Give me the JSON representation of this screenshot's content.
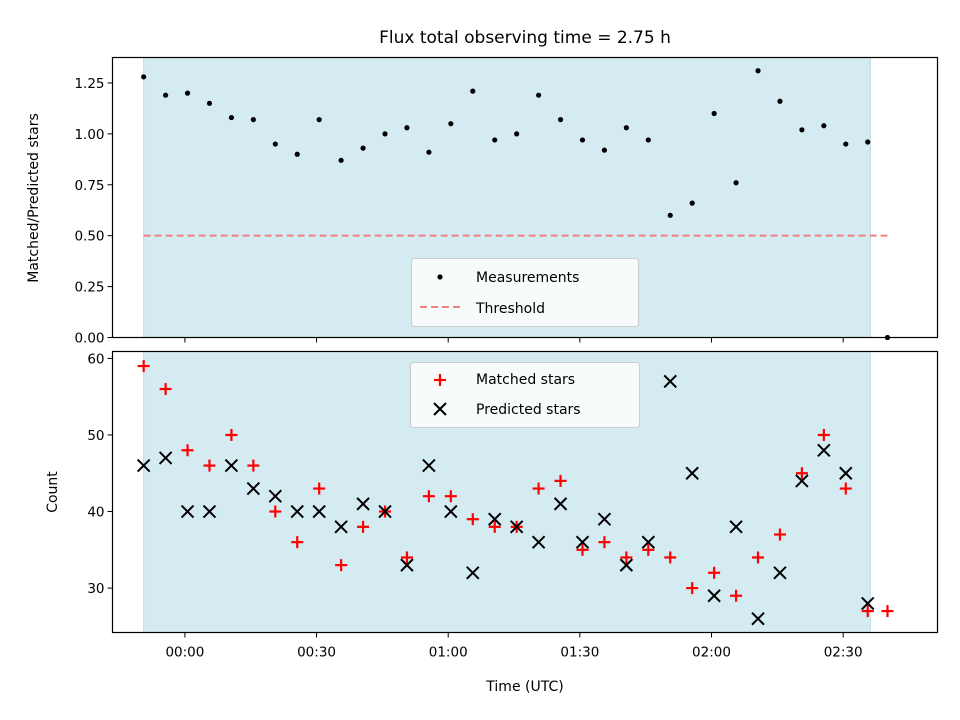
{
  "chart_data": [
    {
      "type": "scatter",
      "title": "Flux total observing time = 2.75 h",
      "xlabel": "",
      "ylabel": "Matched/Predicted stars",
      "ylim": [
        0,
        1.375
      ],
      "yticks": [
        "0.00",
        "0.25",
        "0.50",
        "0.75",
        "1.00",
        "1.25"
      ],
      "ytick_values": [
        0,
        0.25,
        0.5,
        0.75,
        1.0,
        1.25
      ],
      "xlim_minutes": [
        -16.5,
        171.5
      ],
      "shaded_region_minutes": [
        -9.4,
        156.2
      ],
      "legend_position": "lower center",
      "legend": [
        "Measurements",
        "Threshold"
      ],
      "threshold": {
        "name": "Threshold",
        "value": 0.5,
        "x_minutes": [
          -9.4,
          160.1
        ],
        "color": "#f08080"
      },
      "series": [
        {
          "name": "Measurements",
          "color": "#000000",
          "x_minutes": [
            -9.4,
            -4.4,
            0.6,
            5.6,
            10.6,
            15.6,
            20.6,
            25.6,
            30.6,
            35.6,
            40.6,
            45.6,
            50.6,
            55.6,
            60.6,
            65.6,
            70.6,
            75.6,
            80.6,
            85.6,
            90.6,
            95.6,
            100.6,
            105.6,
            110.6,
            115.6,
            120.6,
            125.6,
            130.6,
            135.6,
            140.6,
            145.6,
            150.6,
            155.6,
            160.1
          ],
          "values": [
            1.28,
            1.19,
            1.2,
            1.15,
            1.08,
            1.07,
            0.95,
            0.9,
            1.07,
            0.87,
            0.93,
            1.0,
            1.03,
            0.91,
            1.05,
            1.21,
            0.97,
            1.0,
            1.19,
            1.07,
            0.97,
            0.92,
            1.03,
            0.97,
            0.6,
            0.66,
            1.1,
            0.76,
            1.31,
            1.16,
            1.02,
            1.04,
            0.95,
            0.96,
            0.0
          ]
        }
      ]
    },
    {
      "type": "scatter",
      "title": "",
      "xlabel": "Time (UTC)",
      "ylabel": "Count",
      "ylim": [
        24.2,
        60.9
      ],
      "yticks": [
        "30",
        "40",
        "50",
        "60"
      ],
      "ytick_values": [
        30,
        40,
        50,
        60
      ],
      "xticks": [
        "00:00",
        "00:30",
        "01:00",
        "01:30",
        "02:00",
        "02:30"
      ],
      "xtick_values_minutes": [
        0,
        30,
        60,
        90,
        120,
        150
      ],
      "xlim_minutes": [
        -16.5,
        171.5
      ],
      "shaded_region_minutes": [
        -9.4,
        156.2
      ],
      "legend_position": "upper center",
      "legend": [
        "Matched stars",
        "Predicted stars"
      ],
      "series": [
        {
          "name": "Matched stars",
          "marker": "plus",
          "color": "#ff0000",
          "x_minutes": [
            -9.4,
            -4.4,
            0.6,
            5.6,
            10.6,
            15.6,
            20.6,
            25.6,
            30.6,
            35.6,
            40.6,
            45.6,
            50.6,
            55.6,
            60.6,
            65.6,
            70.6,
            75.6,
            80.6,
            85.6,
            90.6,
            95.6,
            100.6,
            105.6,
            110.6,
            115.6,
            120.6,
            125.6,
            130.6,
            135.6,
            140.6,
            145.6,
            150.6,
            155.6,
            160.1
          ],
          "values": [
            59,
            56,
            48,
            46,
            50,
            46,
            40,
            36,
            43,
            33,
            38,
            40,
            34,
            42,
            42,
            39,
            38,
            38,
            43,
            44,
            35,
            36,
            34,
            35,
            34,
            30,
            32,
            29,
            34,
            37,
            45,
            50,
            43,
            27,
            27
          ]
        },
        {
          "name": "Predicted stars",
          "marker": "x",
          "color": "#000000",
          "x_minutes": [
            -9.4,
            -4.4,
            0.6,
            5.6,
            10.6,
            15.6,
            20.6,
            25.6,
            30.6,
            35.6,
            40.6,
            45.6,
            50.6,
            55.6,
            60.6,
            65.6,
            70.6,
            75.6,
            80.6,
            85.6,
            90.6,
            95.6,
            100.6,
            105.6,
            110.6,
            115.6,
            120.6,
            125.6,
            130.6,
            135.6,
            140.6,
            145.6,
            150.6,
            155.6
          ],
          "values": [
            46,
            47,
            40,
            40,
            46,
            43,
            42,
            40,
            40,
            38,
            41,
            40,
            33,
            46,
            40,
            32,
            39,
            38,
            36,
            41,
            36,
            39,
            33,
            36,
            57,
            45,
            29,
            38,
            26,
            32,
            44,
            48,
            45,
            28
          ]
        }
      ]
    }
  ],
  "colors": {
    "shade": "#d4ebf1",
    "shade_edge": "#b9dde6",
    "matched": "#ff0000",
    "predicted": "#000000",
    "threshold": "#f08080"
  }
}
